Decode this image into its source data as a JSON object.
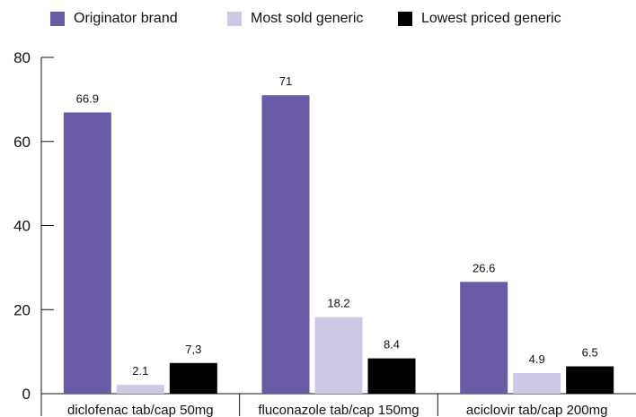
{
  "chart_data": {
    "type": "bar",
    "categories": [
      "diclofenac tab/cap 50mg",
      "fluconazole tab/cap 150mg",
      "aciclovir tab/cap 200mg"
    ],
    "series": [
      {
        "name": "Originator brand",
        "color": "#6a5ba6",
        "values": [
          66.9,
          71,
          26.6
        ],
        "labels": [
          "66.9",
          "71",
          "26.6"
        ]
      },
      {
        "name": "Most sold generic",
        "color": "#cdc8e6",
        "values": [
          2.1,
          18.2,
          4.9
        ],
        "labels": [
          "2.1",
          "18.2",
          "4.9"
        ]
      },
      {
        "name": "Lowest priced generic",
        "color": "#000000",
        "values": [
          7.3,
          8.4,
          6.5
        ],
        "labels": [
          "7,3",
          "8.4",
          "6.5"
        ]
      }
    ],
    "ylim": [
      0,
      80
    ],
    "yticks": [
      0,
      20,
      40,
      60,
      80
    ],
    "legend_position": "top",
    "grid": false
  }
}
